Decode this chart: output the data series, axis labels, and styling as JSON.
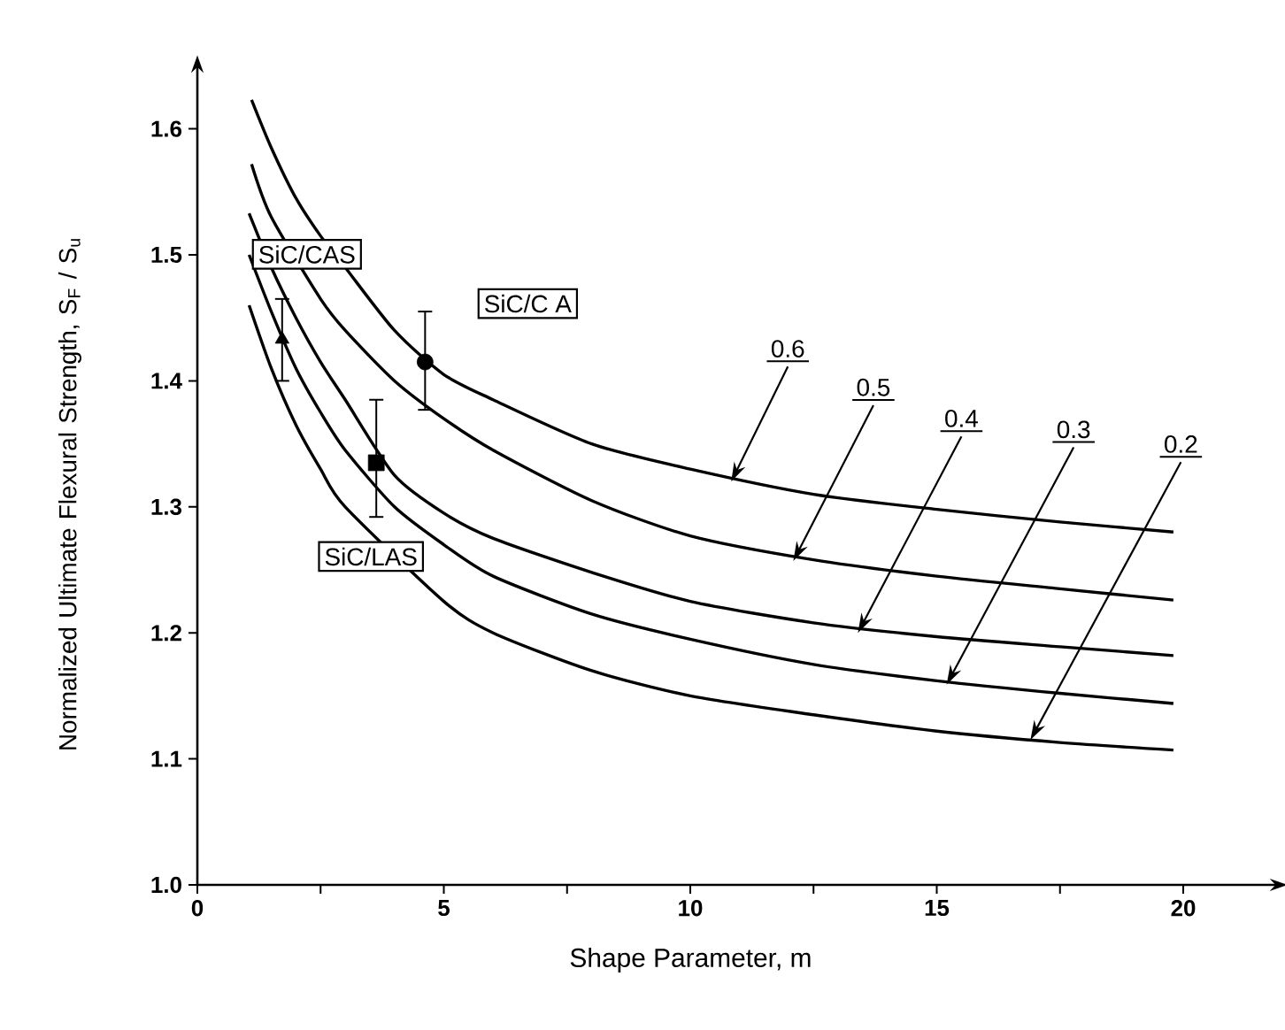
{
  "chart_data": {
    "type": "line",
    "xlabel": "Shape Parameter, m",
    "ylabel": "Normalized Ultimate Flexural Strength, S$_{F}$ / S$_{u}$",
    "xlim": [
      0,
      21.9
    ],
    "ylim": [
      1.0,
      1.65
    ],
    "xticks": [
      0,
      {
        "value": 2.5,
        "label": null
      },
      5,
      {
        "value": 7.5,
        "label": null
      },
      10,
      {
        "value": 12.5,
        "label": null
      },
      15,
      {
        "value": 17.5,
        "label": null
      },
      20
    ],
    "yticks": [
      {
        "value": 1.0,
        "label": "1.0"
      },
      {
        "value": 1.1,
        "label": "1.1"
      },
      {
        "value": 1.2,
        "label": "1.2"
      },
      {
        "value": 1.3,
        "label": "1.3"
      },
      {
        "value": 1.4,
        "label": "1.4"
      },
      {
        "value": 1.5,
        "label": "1.5"
      },
      {
        "value": 1.6,
        "label": "1.6"
      }
    ],
    "marker": "none",
    "series": [
      {
        "color": "#000000",
        "x": [
          1.1,
          1.5,
          2,
          2.5,
          3,
          4,
          5,
          6,
          8,
          10,
          12.5,
          15,
          17.5,
          19.8
        ],
        "values": [
          1.623,
          1.585,
          1.545,
          1.515,
          1.49,
          1.44,
          1.405,
          1.385,
          1.35,
          1.33,
          1.31,
          1.298,
          1.288,
          1.28
        ]
      },
      {
        "color": "#000000",
        "x": [
          1.1,
          1.5,
          2.5,
          3,
          4,
          5,
          6,
          8,
          10,
          12.5,
          15,
          17.5,
          19.8
        ],
        "values": [
          1.572,
          1.53,
          1.465,
          1.44,
          1.4,
          1.37,
          1.345,
          1.305,
          1.277,
          1.258,
          1.245,
          1.235,
          1.226
        ]
      },
      {
        "color": "#000000",
        "x": [
          1.05,
          1.5,
          2,
          2.5,
          3,
          4,
          5,
          6,
          8,
          10,
          12.5,
          15,
          17.5,
          19.8
        ],
        "values": [
          1.533,
          1.49,
          1.45,
          1.415,
          1.385,
          1.325,
          1.295,
          1.275,
          1.248,
          1.225,
          1.208,
          1.197,
          1.189,
          1.182
        ]
      },
      {
        "color": "#000000",
        "x": [
          1.05,
          1.5,
          2,
          2.5,
          3,
          4,
          5,
          6,
          8,
          10,
          12.5,
          15,
          17.5,
          19.8
        ],
        "values": [
          1.5,
          1.455,
          1.41,
          1.375,
          1.345,
          1.3,
          1.27,
          1.245,
          1.215,
          1.195,
          1.175,
          1.162,
          1.152,
          1.144
        ]
      },
      {
        "color": "#000000",
        "x": [
          1.05,
          1.5,
          2,
          2.5,
          3,
          5,
          6,
          8,
          10,
          12.5,
          15,
          17.5,
          19.8
        ],
        "values": [
          1.46,
          1.41,
          1.365,
          1.33,
          1.3,
          1.225,
          1.2,
          1.17,
          1.15,
          1.135,
          1.122,
          1.113,
          1.107
        ]
      },
      {
        "type": "scatter",
        "name": "SiC/CAS",
        "color": "#000000",
        "marker": "triangle",
        "x": [
          1.72
        ],
        "values": [
          1.433
        ],
        "errors": [
          [
            1.4,
            1.465
          ]
        ]
      },
      {
        "type": "scatter",
        "name": "SiC/C A",
        "color": "#000000",
        "marker": "circle",
        "x": [
          4.62
        ],
        "values": [
          1.415
        ],
        "errors": [
          [
            1.377,
            1.455
          ]
        ]
      },
      {
        "type": "scatter",
        "name": "SiC/LAS",
        "color": "#000000",
        "marker": "square",
        "x": [
          3.63
        ],
        "values": [
          1.335
        ],
        "errors": [
          [
            1.292,
            1.385
          ]
        ]
      }
    ],
    "annotations": [
      {
        "text": "0.6",
        "x": 10.83,
        "y": 1.32
      },
      {
        "text": "0.5",
        "x": 12.09,
        "y": 1.257
      },
      {
        "text": "0.4",
        "x": 13.4,
        "y": 1.2
      },
      {
        "text": "0.3",
        "x": 15.2,
        "y": 1.159
      },
      {
        "text": "0.2",
        "x": 16.9,
        "y": 1.115
      }
    ]
  }
}
